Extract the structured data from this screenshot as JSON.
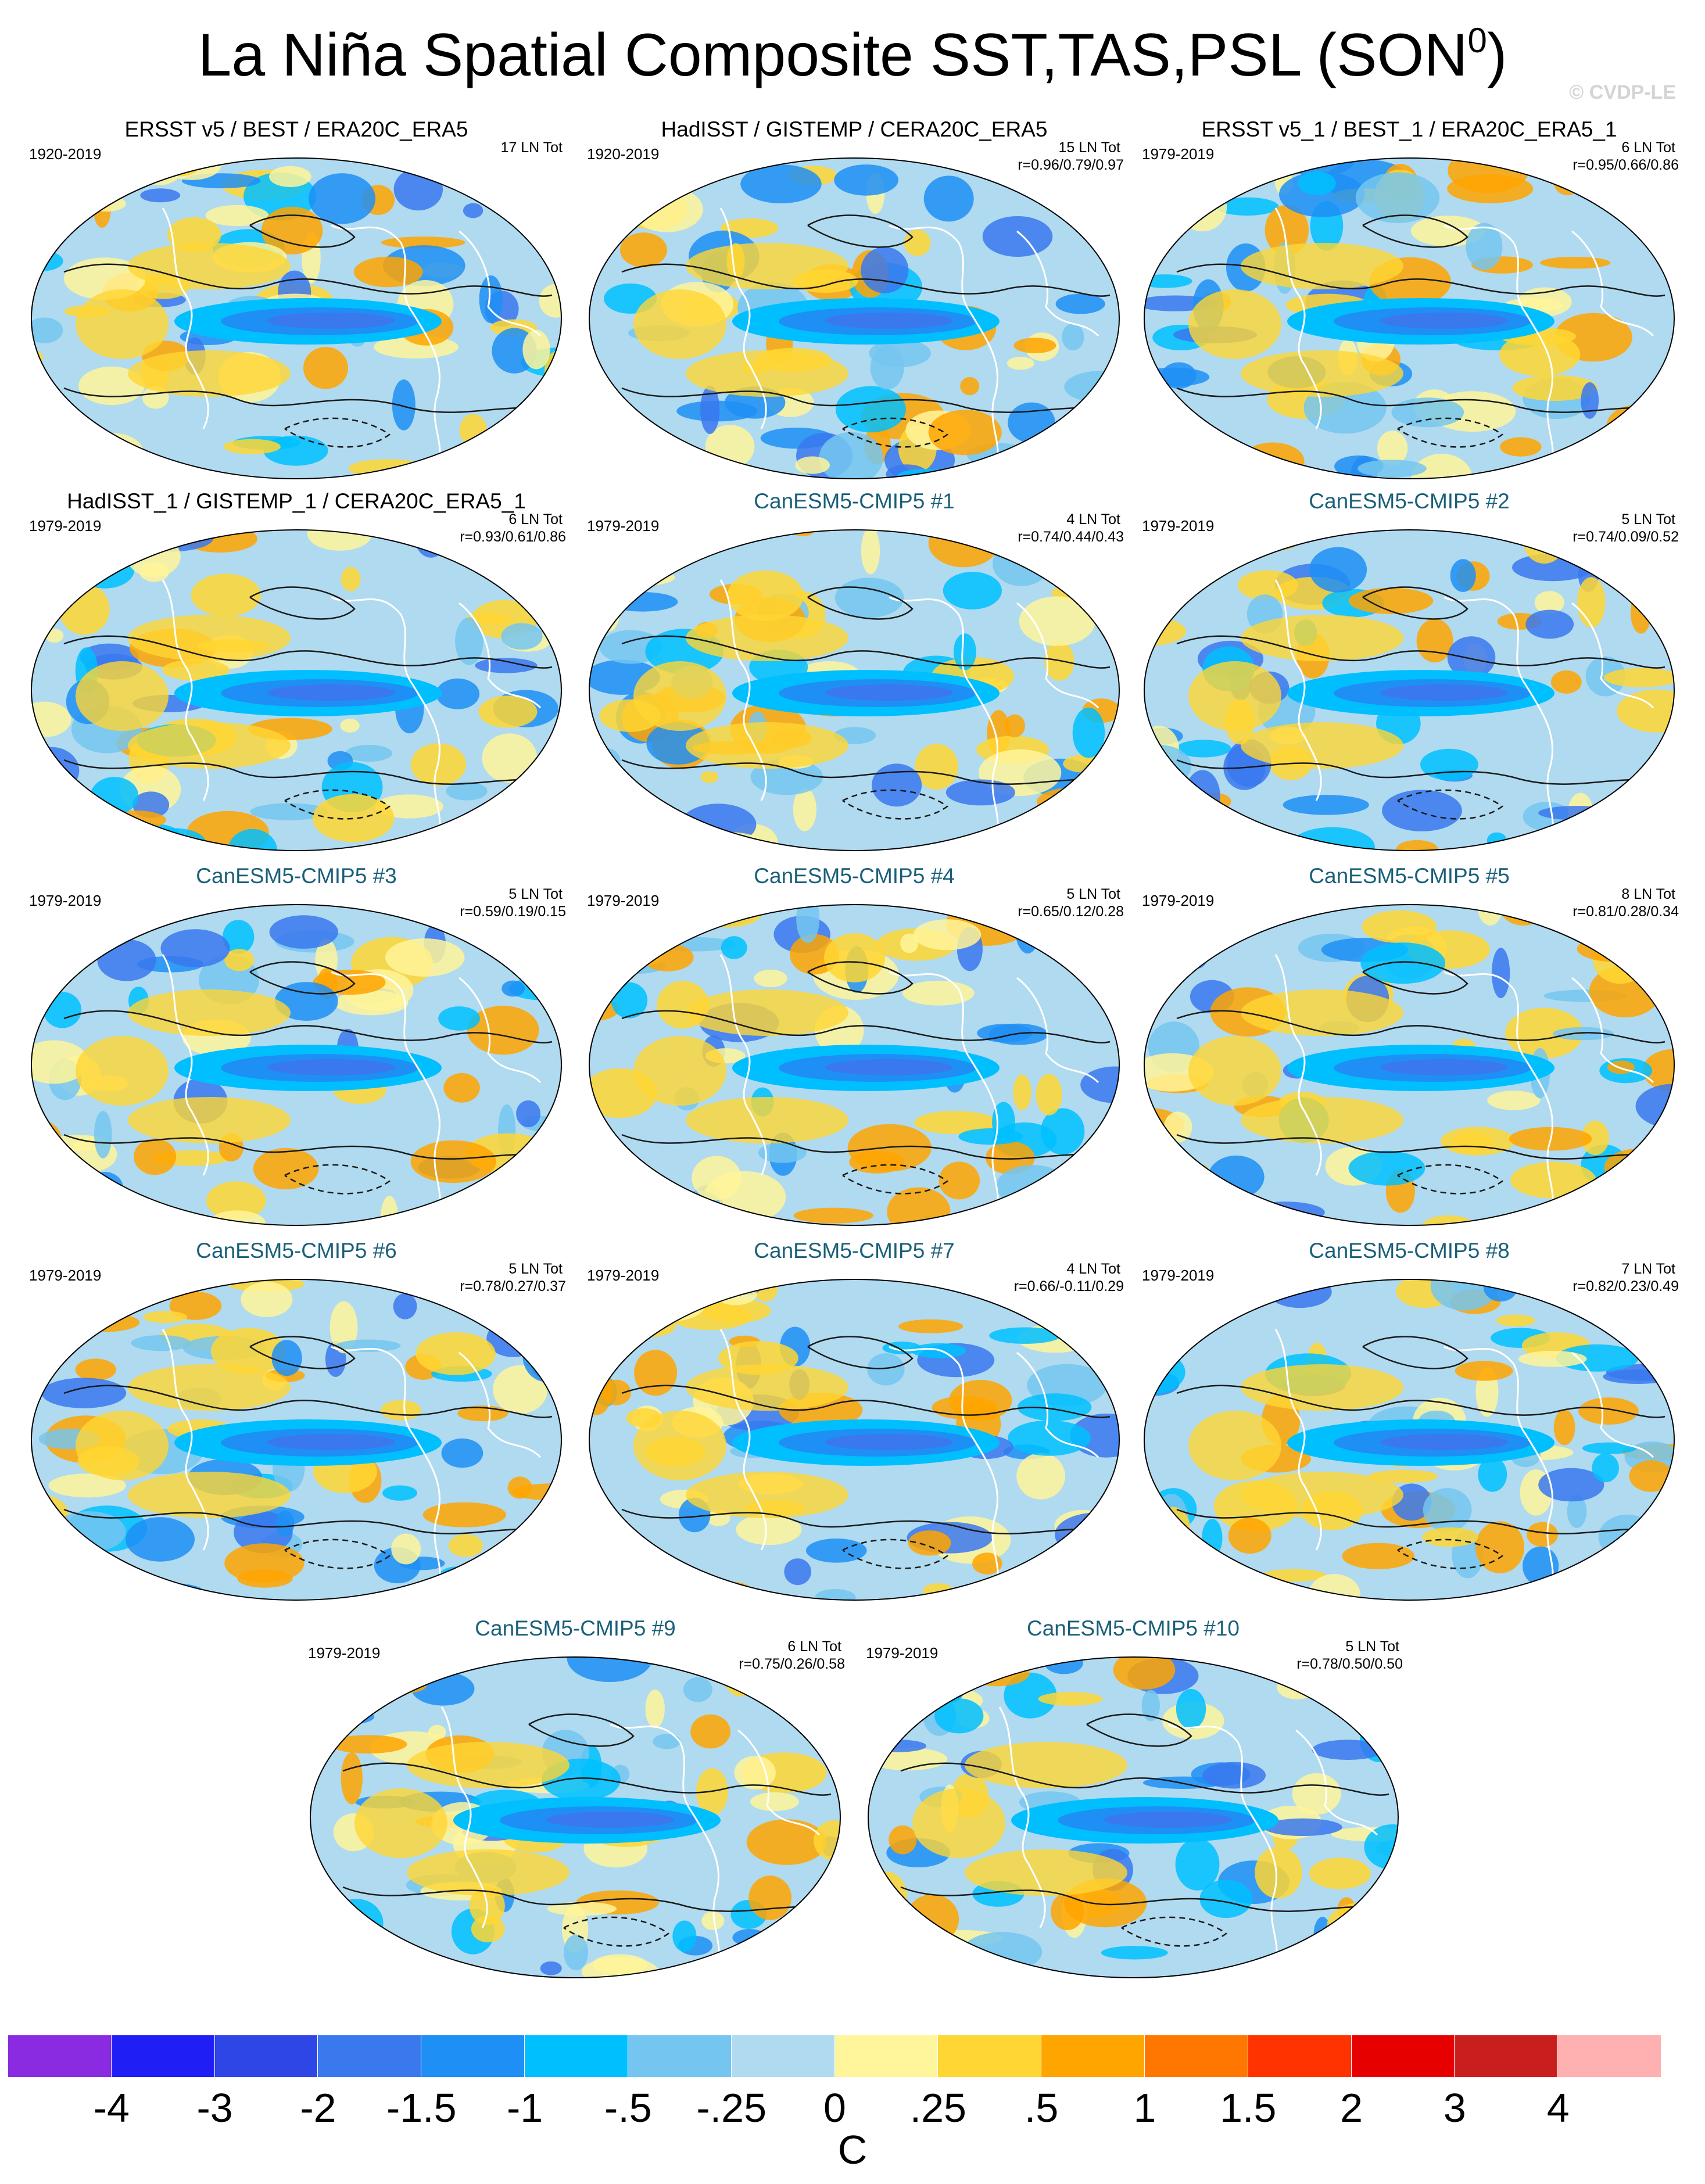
{
  "title": {
    "text": "La Niña Spatial Composite SST,TAS,PSL (SON",
    "sup": "0",
    "close": ")"
  },
  "watermark": "© CVDP-LE",
  "colors": {
    "ocean_base": "#b0daf0",
    "coast": "#ffffff",
    "contour": "#1a1a1a",
    "model_title": "#1a5f7a"
  },
  "panels": [
    {
      "title": "ERSST v5 / BEST / ERA20C_ERA5",
      "kind": "obs",
      "years": "1920-2019",
      "count": "17 LN Tot",
      "r": ""
    },
    {
      "title": "HadISST / GISTEMP / CERA20C_ERA5",
      "kind": "obs",
      "years": "1920-2019",
      "count": "15 LN Tot",
      "r": "r=0.96/0.79/0.97"
    },
    {
      "title": "ERSST v5_1 / BEST_1 / ERA20C_ERA5_1",
      "kind": "obs",
      "years": "1979-2019",
      "count": "6 LN Tot",
      "r": "r=0.95/0.66/0.86"
    },
    {
      "title": "HadISST_1 / GISTEMP_1 / CERA20C_ERA5_1",
      "kind": "obs",
      "years": "1979-2019",
      "count": "6 LN Tot",
      "r": "r=0.93/0.61/0.86"
    },
    {
      "title": "CanESM5-CMIP5 #1",
      "kind": "model",
      "years": "1979-2019",
      "count": "4 LN Tot",
      "r": "r=0.74/0.44/0.43"
    },
    {
      "title": "CanESM5-CMIP5 #2",
      "kind": "model",
      "years": "1979-2019",
      "count": "5 LN Tot",
      "r": "r=0.74/0.09/0.52"
    },
    {
      "title": "CanESM5-CMIP5 #3",
      "kind": "model",
      "years": "1979-2019",
      "count": "5 LN Tot",
      "r": "r=0.59/0.19/0.15"
    },
    {
      "title": "CanESM5-CMIP5 #4",
      "kind": "model",
      "years": "1979-2019",
      "count": "5 LN Tot",
      "r": "r=0.65/0.12/0.28"
    },
    {
      "title": "CanESM5-CMIP5 #5",
      "kind": "model",
      "years": "1979-2019",
      "count": "8 LN Tot",
      "r": "r=0.81/0.28/0.34"
    },
    {
      "title": "CanESM5-CMIP5 #6",
      "kind": "model",
      "years": "1979-2019",
      "count": "5 LN Tot",
      "r": "r=0.78/0.27/0.37"
    },
    {
      "title": "CanESM5-CMIP5 #7",
      "kind": "model",
      "years": "1979-2019",
      "count": "4 LN Tot",
      "r": "r=0.66/-0.11/0.29"
    },
    {
      "title": "CanESM5-CMIP5 #8",
      "kind": "model",
      "years": "1979-2019",
      "count": "7 LN Tot",
      "r": "r=0.82/0.23/0.49"
    },
    {
      "title": "CanESM5-CMIP5 #9",
      "kind": "model",
      "years": "1979-2019",
      "count": "6 LN Tot",
      "r": "r=0.75/0.26/0.58"
    },
    {
      "title": "CanESM5-CMIP5 #10",
      "kind": "model",
      "years": "1979-2019",
      "count": "5 LN Tot",
      "r": "r=0.78/0.50/0.50"
    }
  ],
  "chart_data": {
    "type": "heatmap",
    "title": "La Niña Spatial Composite SST,TAS,PSL (SON0)",
    "colorbar": {
      "unit": "C",
      "labels": [
        "-4",
        "-3",
        "-2",
        "-1.5",
        "-1",
        "-.5",
        "-.25",
        "0",
        ".25",
        ".5",
        "1",
        "1.5",
        "2",
        "3",
        "4"
      ],
      "colors": [
        "#8a2be2",
        "#1e1ef5",
        "#2e46e6",
        "#3a78ee",
        "#1e8ff5",
        "#00bfff",
        "#74c6f0",
        "#b0daf0",
        "#fff59a",
        "#ffd633",
        "#ffa500",
        "#ff7700",
        "#ff3300",
        "#e60000",
        "#c81e1e",
        "#ffb0b0"
      ]
    },
    "panels": [
      {
        "name": "ERSST v5 / BEST / ERA20C_ERA5",
        "years": "1920-2019",
        "events": 17
      },
      {
        "name": "HadISST / GISTEMP / CERA20C_ERA5",
        "years": "1920-2019",
        "events": 15,
        "r": [
          0.96,
          0.79,
          0.97
        ]
      },
      {
        "name": "ERSST v5_1 / BEST_1 / ERA20C_ERA5_1",
        "years": "1979-2019",
        "events": 6,
        "r": [
          0.95,
          0.66,
          0.86
        ]
      },
      {
        "name": "HadISST_1 / GISTEMP_1 / CERA20C_ERA5_1",
        "years": "1979-2019",
        "events": 6,
        "r": [
          0.93,
          0.61,
          0.86
        ]
      },
      {
        "name": "CanESM5-CMIP5 #1",
        "years": "1979-2019",
        "events": 4,
        "r": [
          0.74,
          0.44,
          0.43
        ]
      },
      {
        "name": "CanESM5-CMIP5 #2",
        "years": "1979-2019",
        "events": 5,
        "r": [
          0.74,
          0.09,
          0.52
        ]
      },
      {
        "name": "CanESM5-CMIP5 #3",
        "years": "1979-2019",
        "events": 5,
        "r": [
          0.59,
          0.19,
          0.15
        ]
      },
      {
        "name": "CanESM5-CMIP5 #4",
        "years": "1979-2019",
        "events": 5,
        "r": [
          0.65,
          0.12,
          0.28
        ]
      },
      {
        "name": "CanESM5-CMIP5 #5",
        "years": "1979-2019",
        "events": 8,
        "r": [
          0.81,
          0.28,
          0.34
        ]
      },
      {
        "name": "CanESM5-CMIP5 #6",
        "years": "1979-2019",
        "events": 5,
        "r": [
          0.78,
          0.27,
          0.37
        ]
      },
      {
        "name": "CanESM5-CMIP5 #7",
        "years": "1979-2019",
        "events": 4,
        "r": [
          0.66,
          -0.11,
          0.29
        ]
      },
      {
        "name": "CanESM5-CMIP5 #8",
        "years": "1979-2019",
        "events": 7,
        "r": [
          0.82,
          0.23,
          0.49
        ]
      },
      {
        "name": "CanESM5-CMIP5 #9",
        "years": "1979-2019",
        "events": 6,
        "r": [
          0.75,
          0.26,
          0.58
        ]
      },
      {
        "name": "CanESM5-CMIP5 #10",
        "years": "1979-2019",
        "events": 5,
        "r": [
          0.78,
          0.5,
          0.5
        ]
      }
    ]
  }
}
